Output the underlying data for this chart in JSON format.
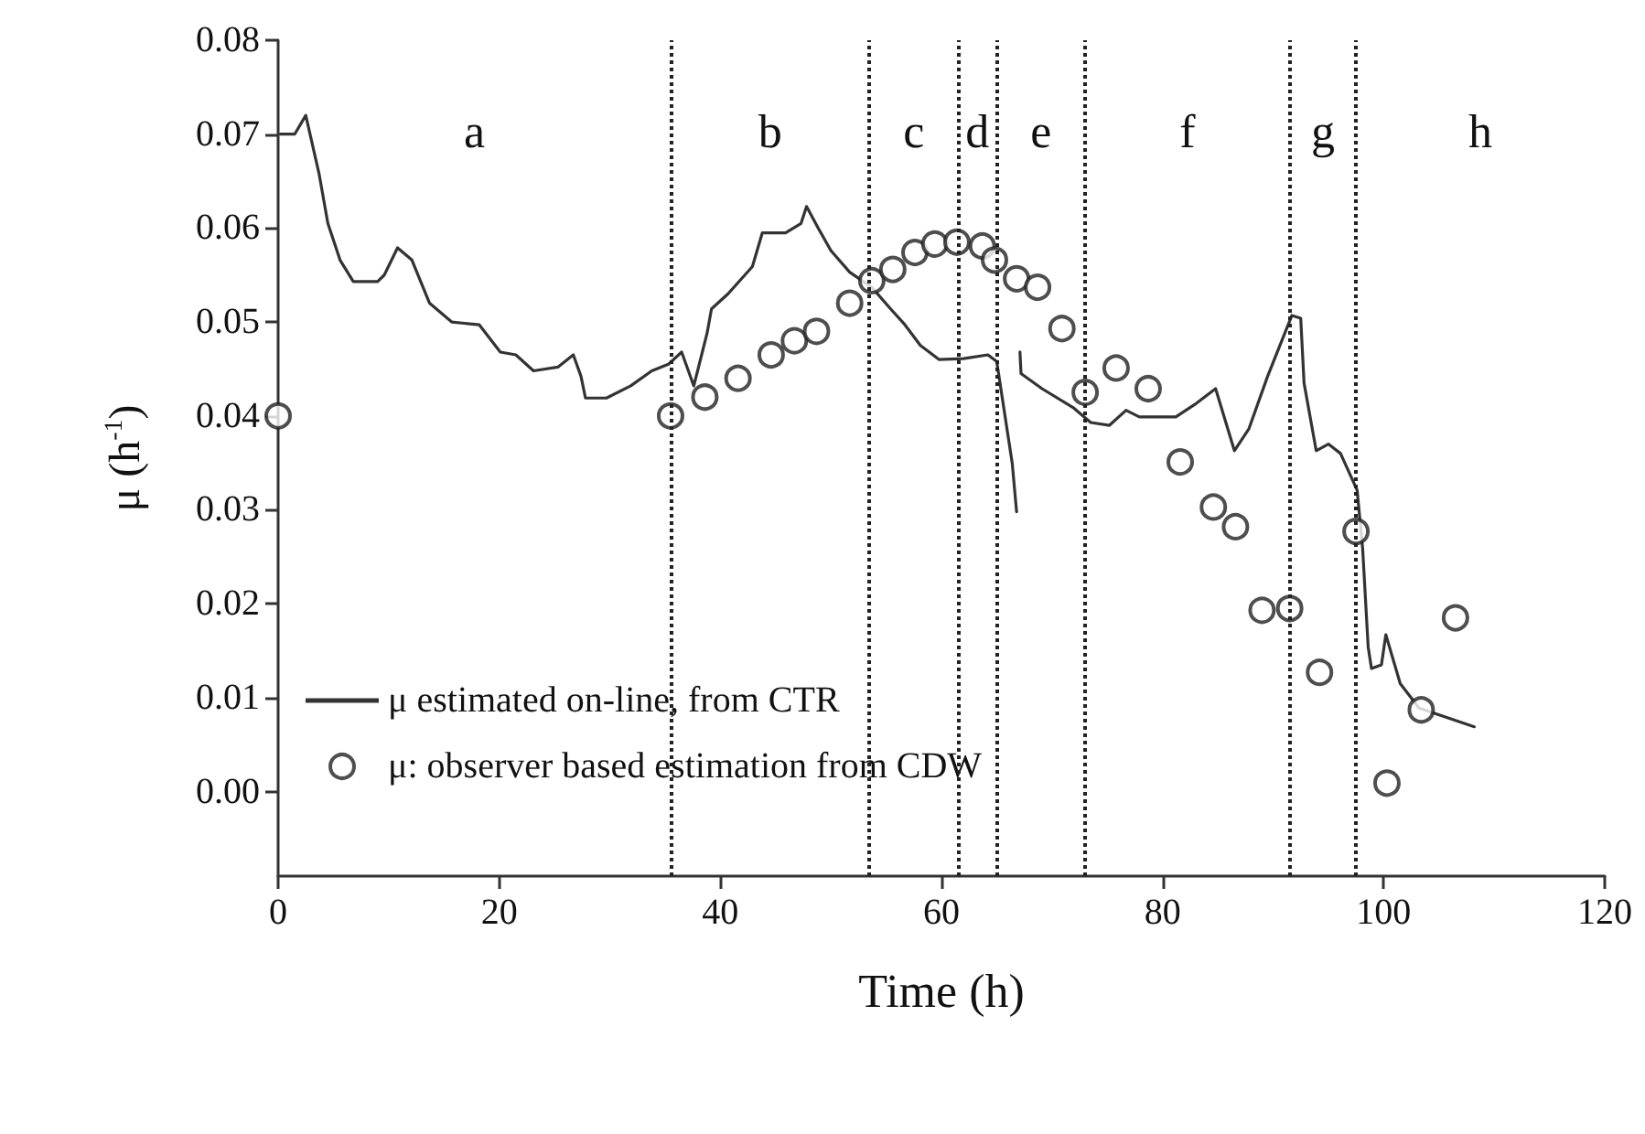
{
  "chart_data": {
    "type": "line",
    "xlabel": "Time (h)",
    "ylabel": "μ (h$^{-1}$)",
    "xlim": [
      0,
      120
    ],
    "xticks": [
      0,
      20,
      40,
      60,
      80,
      100,
      120
    ],
    "ylim": [
      -0.009,
      0.08
    ],
    "yticks": [
      {
        "value": 0,
        "label": "0.00"
      },
      0.01,
      0.02,
      0.03,
      0.04,
      0.05,
      0.06,
      0.07,
      0.08
    ],
    "grid": false,
    "legend": "bottom left",
    "series": [
      {
        "name": "μ estimated on-line, from CTR",
        "color": "#333333",
        "line_style": "solid",
        "marker": "none",
        "x": [
          0.2,
          1.5,
          2.5,
          3.7,
          4.5,
          5.6,
          6.8,
          9.0,
          9.6,
          10.8,
          12.1,
          13.7,
          15.7,
          18.2,
          20.1,
          21.5,
          23.1,
          25.3,
          26.7,
          27.4,
          27.8,
          29.7,
          31.9,
          33.8,
          35.3,
          36.5,
          37.6,
          38.8,
          39.2,
          40.7,
          42.9,
          43.8,
          45.9,
          47.3,
          47.8,
          48.9,
          50.0,
          51.7,
          53.7,
          55.4,
          56.7,
          58.1,
          59.8,
          62.0,
          64.2,
          65.0,
          66.4,
          66.8,
          67.0,
          67.1,
          67.2,
          69.1,
          71.9,
          73.5,
          75.2,
          76.7,
          77.9,
          81.2,
          82.9,
          84.8,
          86.5,
          87.8,
          89.5,
          91.7,
          92.5,
          92.8,
          93.9,
          95.0,
          96.1,
          97.6,
          98.1,
          98.6,
          98.9,
          99.8,
          100.2,
          101.5,
          103.2,
          105.7,
          108.2
        ],
        "values": [
          0.07,
          0.07,
          0.072,
          0.0658,
          0.0605,
          0.0566,
          0.0543,
          0.0543,
          0.055,
          0.0579,
          0.0566,
          0.052,
          0.05,
          0.0497,
          0.0468,
          0.0465,
          0.0448,
          0.0452,
          0.0465,
          0.0442,
          0.0419,
          0.0419,
          0.0432,
          0.0448,
          0.0455,
          0.0468,
          0.0432,
          0.0488,
          0.0514,
          0.053,
          0.0559,
          0.0595,
          0.0595,
          0.0605,
          0.0623,
          0.0599,
          0.0576,
          0.0553,
          0.0537,
          0.0514,
          0.0497,
          0.0475,
          0.046,
          0.0461,
          0.0465,
          0.0458,
          0.035,
          0.0298,
          null,
          0.0468,
          0.0445,
          0.0429,
          0.0409,
          0.0393,
          0.039,
          0.0406,
          0.0399,
          0.0399,
          0.0412,
          0.0429,
          0.0363,
          0.0386,
          0.0442,
          0.0507,
          0.0504,
          0.0435,
          0.0363,
          0.037,
          0.036,
          0.0321,
          0.0259,
          0.0154,
          0.0131,
          0.0135,
          0.0167,
          0.0115,
          0.0089,
          0.0079,
          0.0069
        ]
      },
      {
        "name": "μ: observer based estimation from CDW",
        "type": "scatter",
        "color": "#222222",
        "marker": "circle",
        "x": [
          0,
          35.5,
          38.6,
          41.6,
          44.6,
          46.7,
          48.7,
          51.7,
          53.7,
          55.6,
          57.6,
          59.4,
          61.4,
          63.7,
          64.8,
          66.8,
          68.7,
          70.9,
          73.0,
          75.8,
          78.7,
          81.6,
          84.6,
          86.6,
          89.0,
          91.5,
          94.2,
          97.5,
          100.3,
          103.4,
          106.5
        ],
        "values": [
          0.04,
          0.04,
          0.042,
          0.044,
          0.0465,
          0.048,
          0.049,
          0.052,
          0.0544,
          0.0556,
          0.0574,
          0.0583,
          0.0585,
          0.0581,
          0.0566,
          0.0546,
          0.0537,
          0.0493,
          0.0425,
          0.0451,
          0.0429,
          0.0351,
          0.0303,
          0.0282,
          0.0193,
          0.0195,
          0.0127,
          0.0277,
          0.0009,
          0.0087,
          0.0185
        ]
      }
    ],
    "ref_lines": [
      {
        "axis": "x",
        "value": 35.5,
        "line_style": "dotted",
        "color": "#222222"
      },
      {
        "axis": "x",
        "value": 53.5,
        "line_style": "dotted",
        "color": "#222222"
      },
      {
        "axis": "x",
        "value": 61.5,
        "line_style": "dotted",
        "color": "#222222"
      },
      {
        "axis": "x",
        "value": 65,
        "line_style": "dotted",
        "color": "#222222"
      },
      {
        "axis": "x",
        "value": 73,
        "line_style": "dotted",
        "color": "#222222"
      },
      {
        "axis": "x",
        "value": 91.5,
        "line_style": "dotted",
        "color": "#222222"
      },
      {
        "axis": "x",
        "value": 97.5,
        "line_style": "dotted",
        "color": "#222222"
      }
    ],
    "annotations": [
      "a",
      "b",
      "c",
      "d",
      "e",
      "f",
      "g",
      "h"
    ]
  }
}
